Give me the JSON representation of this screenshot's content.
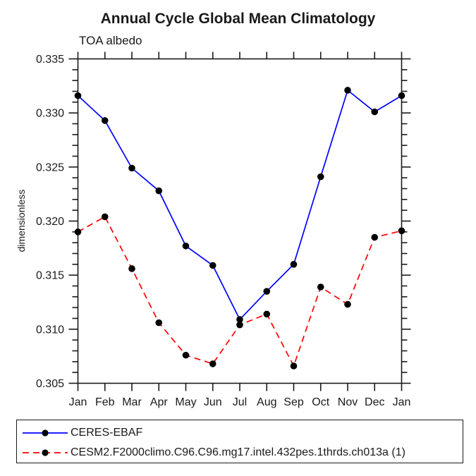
{
  "title": "Annual Cycle Global Mean Climatology",
  "chart_data": {
    "type": "line",
    "title": "Annual Cycle Global Mean Climatology",
    "subtitle": "TOA albedo",
    "ylabel": "dimensionless",
    "xlabel": "",
    "categories": [
      "Jan",
      "Feb",
      "Mar",
      "Apr",
      "May",
      "Jun",
      "Jul",
      "Aug",
      "Sep",
      "Oct",
      "Nov",
      "Dec",
      "Jan"
    ],
    "ylim": [
      0.305,
      0.335
    ],
    "ytick_major_step": 0.005,
    "ytick_minor_step": 0.001,
    "ytick_labels": [
      "0.335",
      "0.330",
      "0.325",
      "0.320",
      "0.315",
      "0.310",
      "0.305"
    ],
    "grid": false,
    "legend_position": "bottom-left boxed",
    "axis_color": "#1a1a1a",
    "marker_color": "#000000",
    "series": [
      {
        "name": "CERES-EBAF",
        "color": "#0000ff",
        "style": "solid",
        "values": [
          0.3316,
          0.3293,
          0.3249,
          0.3228,
          0.3177,
          0.3159,
          0.3109,
          0.3135,
          0.316,
          0.3241,
          0.3321,
          0.3301,
          0.3316
        ]
      },
      {
        "name": "CESM2.F2000climo.C96.C96.mg17.intel.432pes.1thrds.ch013a (1)",
        "color": "#ff0000",
        "style": "dashed",
        "values": [
          0.319,
          0.3204,
          0.3156,
          0.3106,
          0.3076,
          0.3068,
          0.3104,
          0.3114,
          0.3066,
          0.3139,
          0.3123,
          0.3185,
          0.3191
        ]
      }
    ]
  }
}
